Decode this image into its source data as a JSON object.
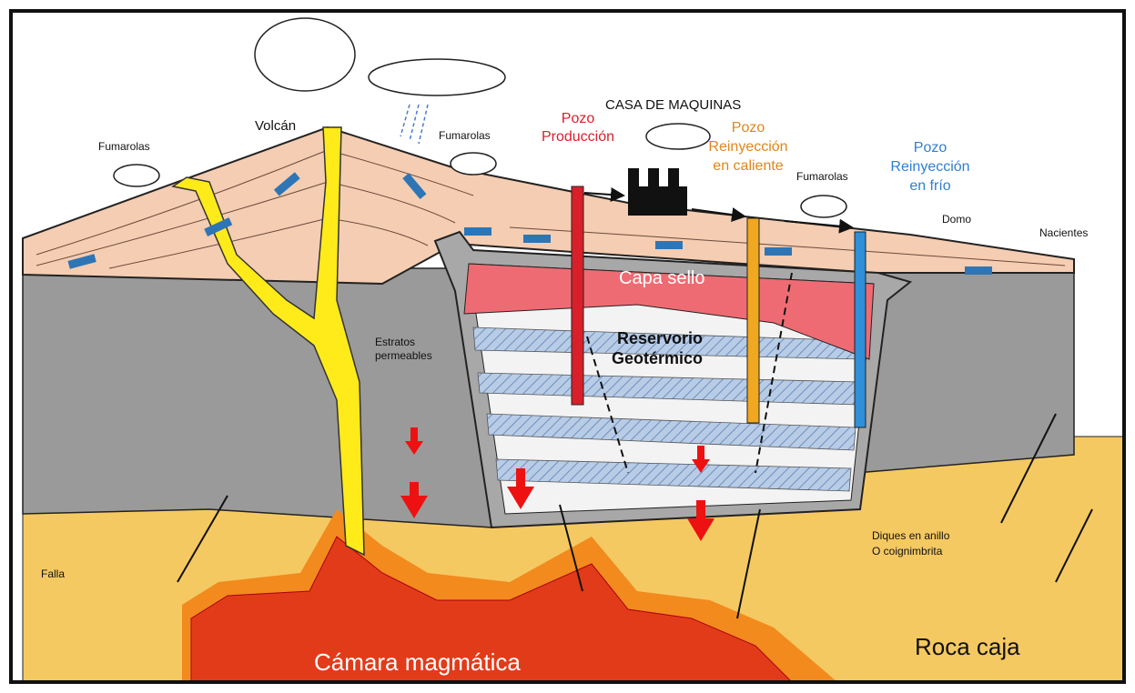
{
  "labels": {
    "volcano": "Volcán",
    "fumarolas": [
      "Fumarolas",
      "Fumarolas",
      "Fumarolas"
    ],
    "power_house": "CASA DE MAQUINAS",
    "production_well": [
      "Pozo",
      "Producción"
    ],
    "hot_reinjection_well": [
      "Pozo",
      "Reinyección",
      "en caliente"
    ],
    "cold_reinjection_well": [
      "Pozo",
      "Reinyección",
      "en frío"
    ],
    "dome": "Domo",
    "springs": "Nacientes",
    "cap_rock": "Capa sello",
    "reservoir": [
      "Reservorio",
      "Geotérmico"
    ],
    "permeable_strata": [
      "Estratos",
      "permeables"
    ],
    "fault": "Falla",
    "ring_dikes": [
      "Diques en anillo",
      "O coignimbrita"
    ],
    "magma_chamber": "Cámara magmática",
    "host_rock": "Roca caja"
  }
}
